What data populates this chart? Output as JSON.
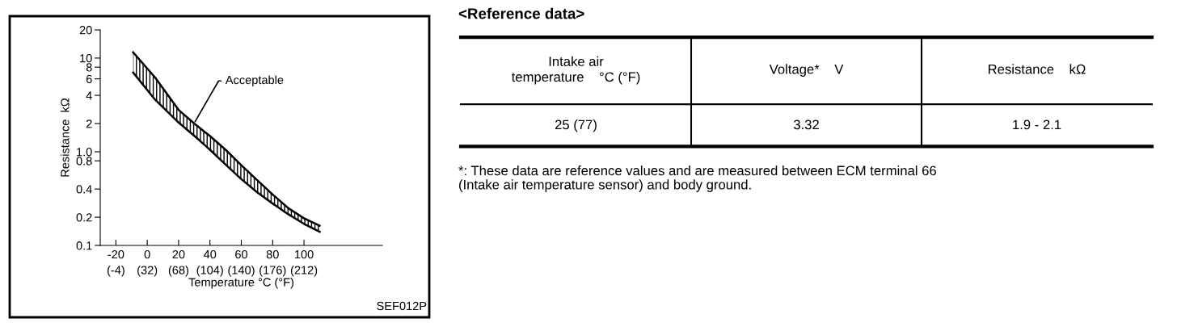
{
  "chart_data": [
    {
      "type": "line",
      "xlabel": "Temperature °C (°F)",
      "ylabel": "Resistance  kΩ",
      "log": "y",
      "xlim": [
        -30,
        150
      ],
      "ylim": [
        0.1,
        20
      ],
      "xticks": [
        -20,
        0,
        20,
        40,
        60,
        80,
        100
      ],
      "x2lim": [
        -22,
        302
      ],
      "x2ticks": [
        {
          "value": -4,
          "label": "(-4)"
        },
        {
          "value": 32,
          "label": "(32)"
        },
        {
          "value": 68,
          "label": "(68)"
        },
        {
          "value": 104,
          "label": "(104)"
        },
        {
          "value": 140,
          "label": "(140)"
        },
        {
          "value": 176,
          "label": "(176)"
        },
        {
          "value": 212,
          "label": "(212)"
        }
      ],
      "yticks": [
        0.1,
        0.2,
        0.4,
        0.8,
        {
          "value": 1,
          "label": "1.0"
        },
        2,
        4,
        6,
        8,
        10,
        20
      ],
      "grid": false,
      "marker": "none",
      "line_style": "solid",
      "series": [
        {
          "color": "#000000",
          "x": [
            -9,
            5,
            20,
            30,
            40,
            50,
            60,
            70,
            80,
            90,
            100,
            110
          ],
          "values": [
            11.5,
            6.2,
            2.8,
            2.0,
            1.47,
            1.05,
            0.72,
            0.5,
            0.35,
            0.25,
            0.195,
            0.162
          ],
          "upper": [
            11.5,
            6.2,
            2.8,
            2.0,
            1.47,
            1.05,
            0.72,
            0.5,
            0.35,
            0.25,
            0.195,
            0.162
          ],
          "lower": [
            7.0,
            3.6,
            2.05,
            1.48,
            1.05,
            0.73,
            0.51,
            0.37,
            0.28,
            0.215,
            0.17,
            0.14
          ]
        },
        {
          "color": "#000000",
          "x": [
            -9,
            5,
            20,
            30,
            40,
            50,
            60,
            70,
            80,
            90,
            100,
            110
          ],
          "values": [
            7.0,
            3.6,
            2.05,
            1.48,
            1.05,
            0.73,
            0.51,
            0.37,
            0.28,
            0.215,
            0.17,
            0.14
          ]
        }
      ],
      "annotations": [
        {
          "text": "Acceptable",
          "x": 29.8,
          "y": 2.0
        },
        "SEF012P"
      ]
    },
    {
      "type": "other",
      "title": "<Reference data>",
      "annotations": [
        "Intake air\ntemperature    °C (°F)",
        "Voltage*    V",
        "Resistance    kΩ",
        "25 (77)",
        "3.32",
        "1.9 - 2.1",
        "*: These data are reference values and are measured between ECM terminal 66\n(Intake air temperature sensor) and body ground."
      ]
    }
  ]
}
